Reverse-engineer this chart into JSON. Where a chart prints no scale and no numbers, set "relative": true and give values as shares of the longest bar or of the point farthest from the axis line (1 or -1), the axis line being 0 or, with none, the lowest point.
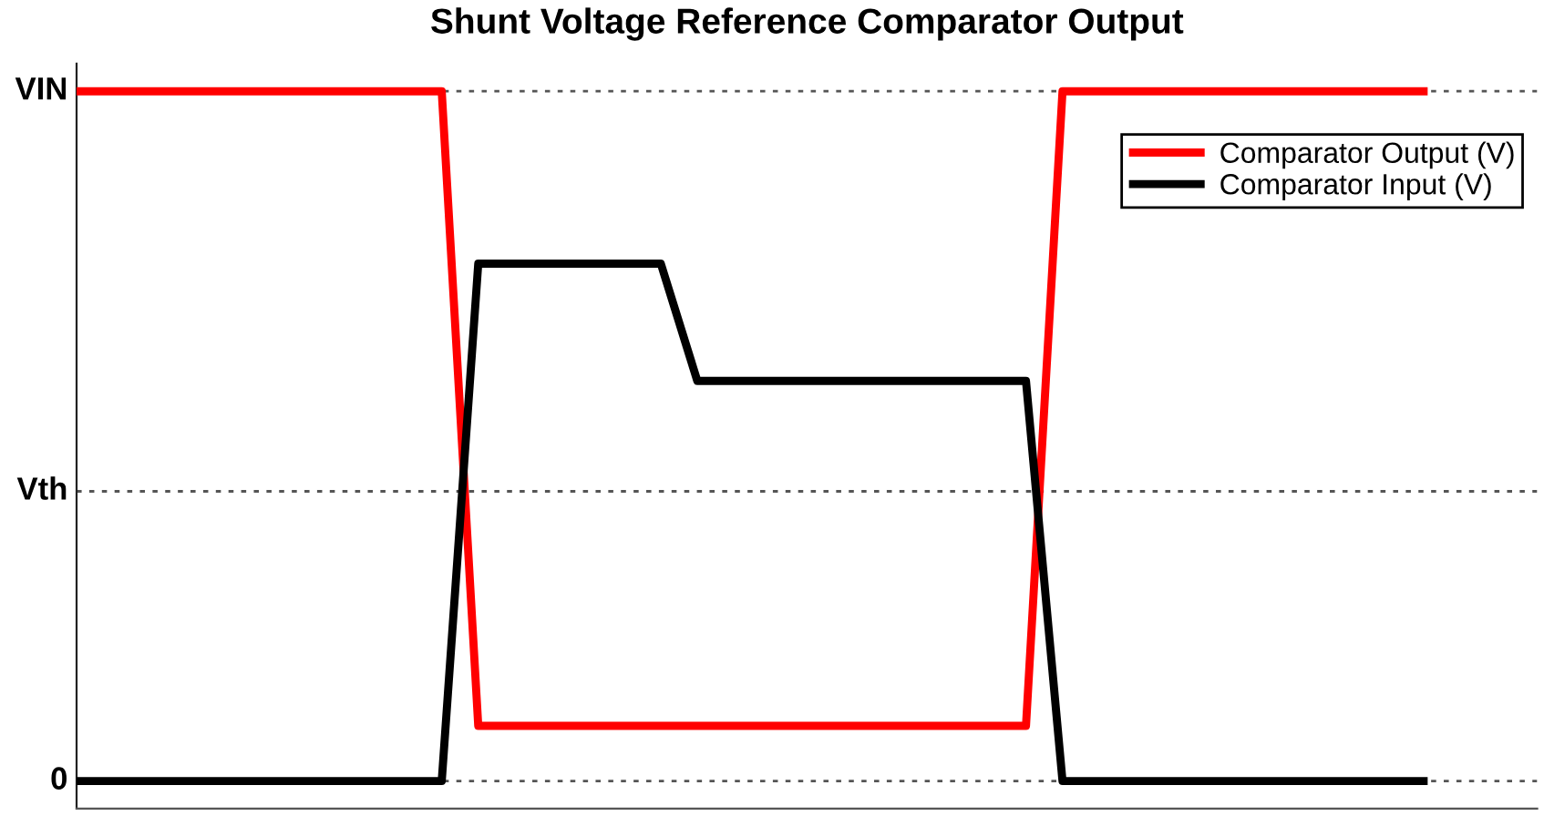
{
  "chart_data": {
    "type": "line",
    "title": "Shunt Voltage Reference Comparator Output",
    "relative": true,
    "categories": [
      null,
      null,
      null,
      null,
      null,
      null,
      null,
      null,
      null,
      null,
      null,
      null,
      null,
      null,
      null,
      null,
      null,
      null,
      null,
      null,
      null,
      null,
      null,
      null,
      null,
      null,
      null,
      null,
      null,
      null,
      null,
      null,
      null,
      null,
      null,
      null,
      null,
      null,
      null,
      null,
      null
    ],
    "series": [
      {
        "name": "Comparator Output (V)",
        "color": "#ff0000",
        "values": [
          1,
          1,
          1,
          1,
          1,
          1,
          1,
          1,
          1,
          1,
          1,
          0.08,
          0.08,
          0.08,
          0.08,
          0.08,
          0.08,
          0.08,
          0.08,
          0.08,
          0.08,
          0.08,
          0.08,
          0.08,
          0.08,
          0.08,
          0.08,
          1,
          1,
          1,
          1,
          1,
          1,
          1,
          1,
          1,
          1,
          1,
          null,
          null,
          null
        ]
      },
      {
        "name": "Comparator Input (V)",
        "color": "#000000",
        "values": [
          0,
          0,
          0,
          0,
          0,
          0,
          0,
          0,
          0,
          0,
          0,
          0.75,
          0.75,
          0.75,
          0.75,
          0.75,
          0.75,
          0.58,
          0.58,
          0.58,
          0.58,
          0.58,
          0.58,
          0.58,
          0.58,
          0.58,
          0.58,
          0,
          0,
          0,
          0,
          0,
          0,
          0,
          0,
          0,
          0,
          0,
          null,
          null,
          null
        ]
      }
    ],
    "ref_lines": [
      {
        "axis": "y",
        "value": 0,
        "label": "0",
        "line_style": "dotted",
        "color": "#555555"
      },
      {
        "axis": "y",
        "value": 0.42,
        "label": "Vth",
        "line_style": "dotted",
        "color": "#555555"
      },
      {
        "axis": "y",
        "value": 1,
        "label": "VIN",
        "line_style": "dotted",
        "color": "#555555"
      }
    ],
    "legend": "top right",
    "line_style": "solid"
  }
}
